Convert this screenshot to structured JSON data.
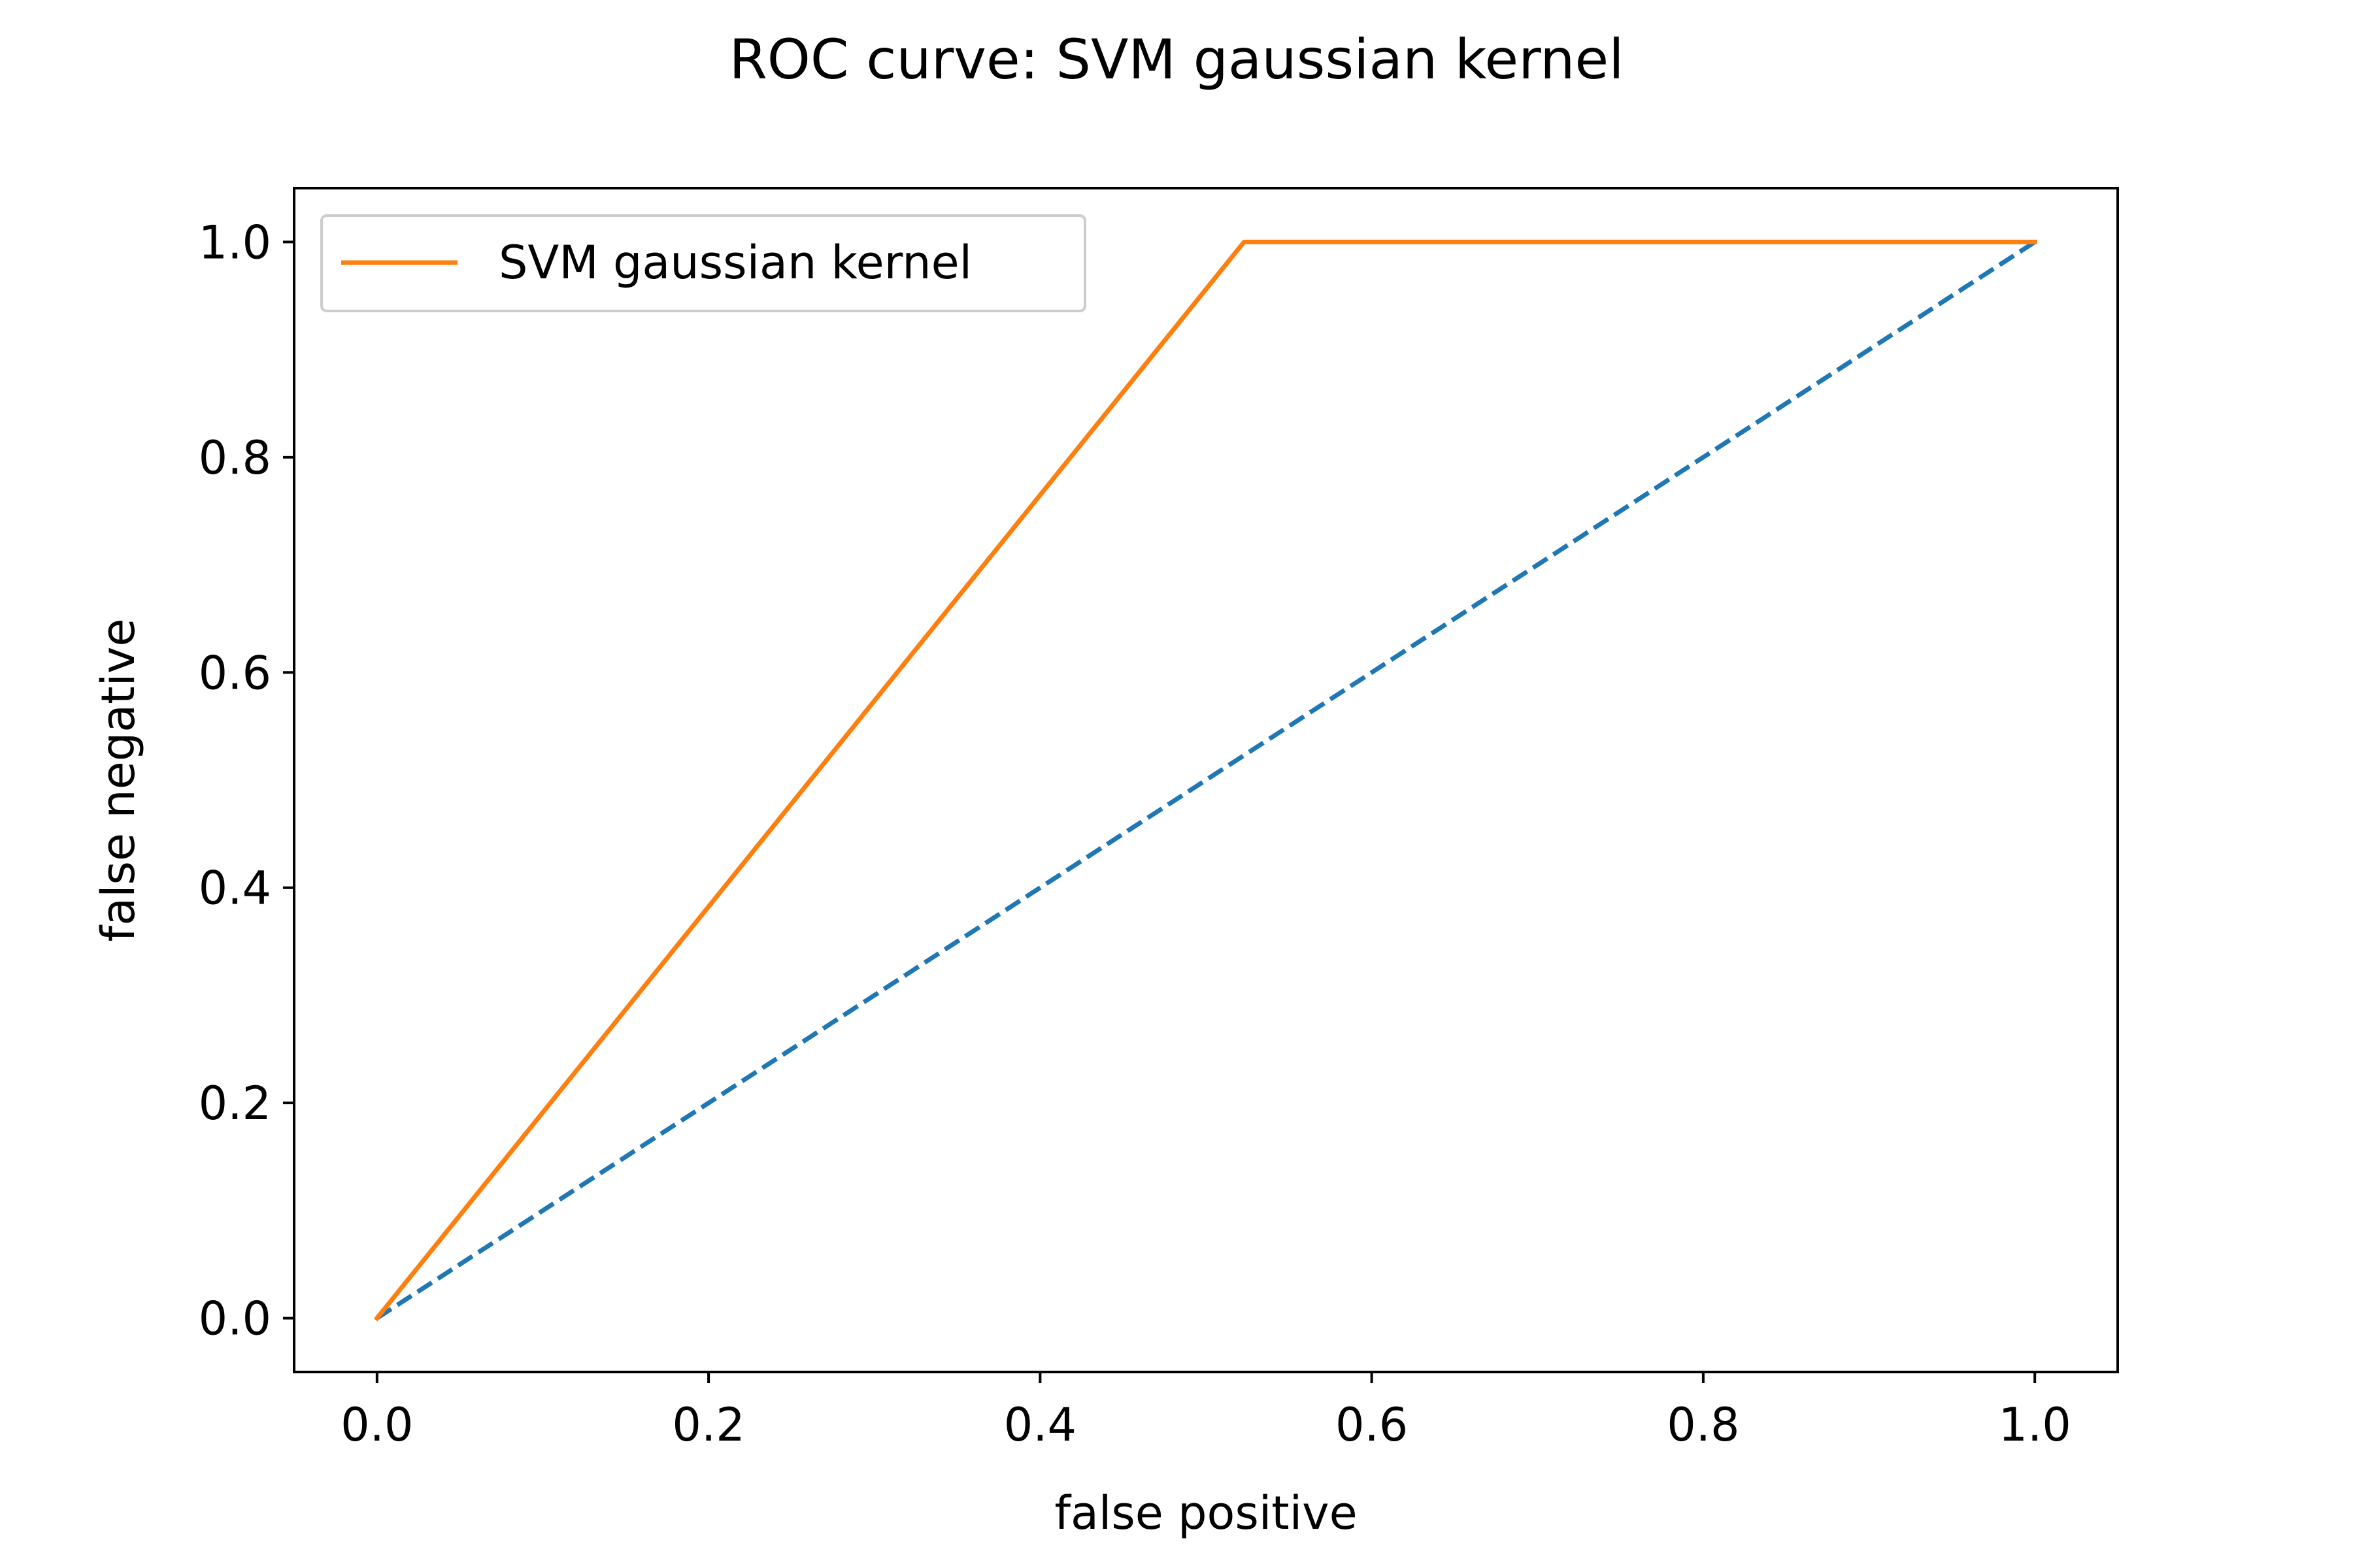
{
  "chart_data": {
    "type": "line",
    "title": "ROC curve: SVM gaussian kernel",
    "xlabel": "false positive",
    "ylabel": "false negative",
    "xlim": [
      -0.05,
      1.05
    ],
    "ylim": [
      -0.05,
      1.05
    ],
    "xticks": [
      0.0,
      0.2,
      0.4,
      0.6,
      0.8,
      1.0
    ],
    "xtick_labels": [
      "0.0",
      "0.2",
      "0.4",
      "0.6",
      "0.8",
      "1.0"
    ],
    "yticks": [
      0.0,
      0.2,
      0.4,
      0.6,
      0.8,
      1.0
    ],
    "ytick_labels": [
      "0.0",
      "0.2",
      "0.4",
      "0.6",
      "0.8",
      "1.0"
    ],
    "grid": false,
    "legend_position": "top-left",
    "series": [
      {
        "key": "diagonal",
        "x": [
          0.0,
          1.0
        ],
        "y": [
          0.0,
          1.0
        ],
        "color": "#1f77b4",
        "linestyle": "dashed"
      },
      {
        "key": "svm",
        "name": "SVM gaussian kernel",
        "x": [
          0.0,
          0.523,
          1.0
        ],
        "y": [
          0.0,
          1.0,
          1.0
        ],
        "color": "#ff7f0e",
        "linestyle": "solid"
      }
    ]
  }
}
